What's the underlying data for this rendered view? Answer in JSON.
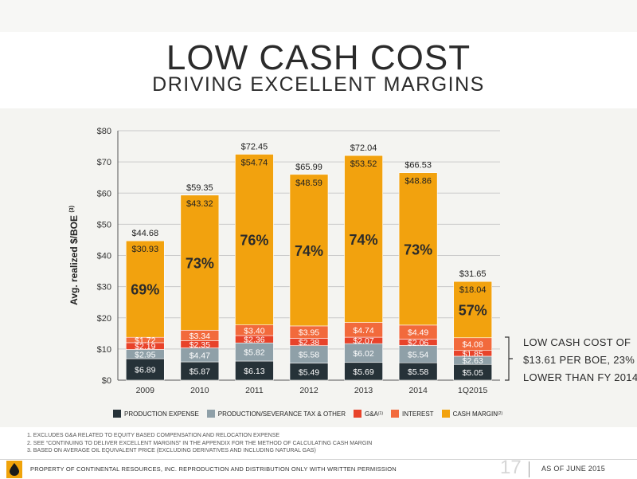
{
  "title": "LOW CASH COST",
  "subtitle": "DRIVING EXCELLENT MARGINS",
  "chart_data": {
    "type": "bar",
    "stacked": true,
    "ylabel": "Avg. realized $/BOE",
    "ylabel_sup": "(3)",
    "ylim": [
      0,
      80
    ],
    "ytick_labels": [
      "$0",
      "$10",
      "$20",
      "$30",
      "$40",
      "$50",
      "$60",
      "$70",
      "$80"
    ],
    "yticks": [
      0,
      10,
      20,
      30,
      40,
      50,
      60,
      70,
      80
    ],
    "grid": true,
    "categories": [
      "2009",
      "2010",
      "2011",
      "2012",
      "2013",
      "2014",
      "1Q2015"
    ],
    "series": [
      {
        "name": "PRODUCTION EXPENSE",
        "color": "#263238",
        "values": [
          6.89,
          5.87,
          6.13,
          5.49,
          5.69,
          5.58,
          5.05
        ],
        "labels": [
          "$6.89",
          "$5.87",
          "$6.13",
          "$5.49",
          "$5.69",
          "$5.58",
          "$5.05"
        ]
      },
      {
        "name": "PRODUCTION/SEVERANCE TAX & OTHER",
        "color": "#8fa0a8",
        "values": [
          2.95,
          4.47,
          5.82,
          5.58,
          6.02,
          5.54,
          2.63
        ],
        "labels": [
          "$2.95",
          "$4.47",
          "$5.82",
          "$5.58",
          "$6.02",
          "$5.54",
          "$2.63"
        ]
      },
      {
        "name": "G&A",
        "sup": "(1)",
        "color": "#e8432a",
        "values": [
          2.19,
          2.35,
          2.36,
          2.38,
          2.07,
          2.06,
          1.85
        ],
        "labels": [
          "$2.19",
          "$2.35",
          "$2.36",
          "$2.38",
          "$2.07",
          "$2.06",
          "$1.85"
        ]
      },
      {
        "name": "INTEREST",
        "color": "#f26a3c",
        "values": [
          1.72,
          3.34,
          3.4,
          3.95,
          4.74,
          4.49,
          4.08
        ],
        "labels": [
          "$1.72",
          "$3.34",
          "$3.40",
          "$3.95",
          "$4.74",
          "$4.49",
          "$4.08"
        ]
      },
      {
        "name": "CASH MARGIN",
        "sup": "(2)",
        "color": "#f2a20e",
        "values": [
          30.93,
          43.32,
          54.74,
          48.59,
          53.52,
          48.86,
          18.04
        ],
        "labels": [
          "$30.93",
          "$43.32",
          "$54.74",
          "$48.59",
          "$53.52",
          "$48.86",
          "$18.04"
        ]
      }
    ],
    "totals": [
      44.68,
      59.35,
      72.45,
      65.99,
      72.04,
      66.53,
      31.65
    ],
    "total_labels": [
      "$44.68",
      "$59.35",
      "$72.45",
      "$65.99",
      "$72.04",
      "$66.53",
      "$31.65"
    ],
    "margin_percent_labels": [
      "69%",
      "73%",
      "76%",
      "74%",
      "74%",
      "73%",
      "57%"
    ],
    "annotation": {
      "lines": [
        "LOW CASH COST OF",
        "$13.61 PER BOE, 23%",
        "LOWER THAN FY 2014"
      ]
    },
    "legend_position": "bottom"
  },
  "footnotes": [
    "1. EXCLUDES G&A RELATED TO EQUITY BASED COMPENSATION AND RELOCATION EXPENSE",
    "2. SEE “CONTINUING TO DELIVER EXCELLENT MARGINS” IN THE APPENDIX FOR THE METHOD OF CALCULATING CASH MARGIN",
    "3. BASED ON AVERAGE OIL EQUIVALENT PRICE (EXCLUDING DERIVATIVES AND INCLUDING NATURAL GAS)"
  ],
  "footer": {
    "text": "PROPERTY OF CONTINENTAL RESOURCES, INC. REPRODUCTION AND DISTRIBUTION ONLY WITH WRITTEN PERMISSION",
    "page_number": "17",
    "as_of": "AS OF JUNE 2015",
    "logo_icon": "oil-drop-icon"
  }
}
